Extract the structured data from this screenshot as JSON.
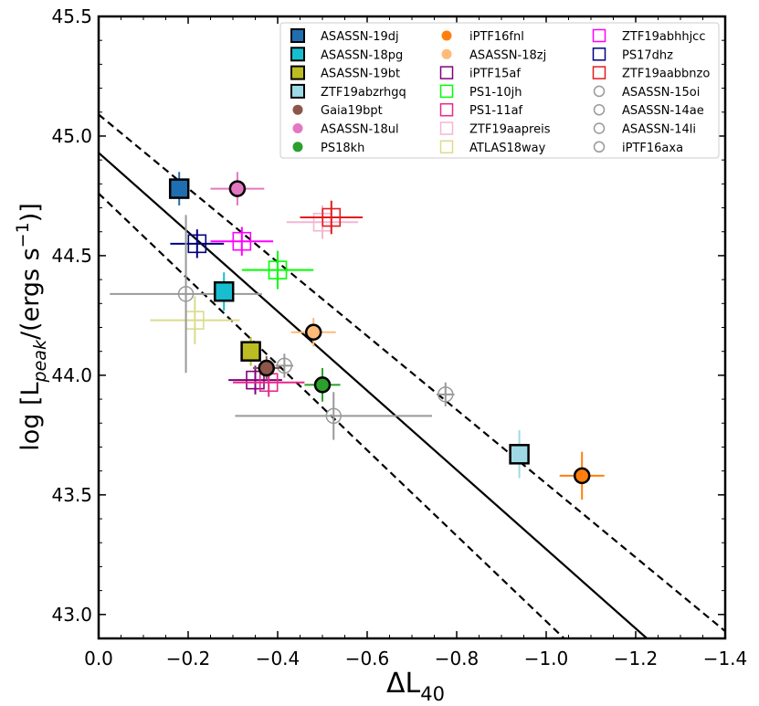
{
  "chart_data": {
    "type": "scatter",
    "xlabel_main": "ΔL",
    "xlabel_sub": "40",
    "ylabel_prefix": "log [L",
    "ylabel_sub": "peak",
    "ylabel_mid": "/(ergs s",
    "ylabel_sup": "−1",
    "ylabel_suffix": ")]",
    "xlim": [
      0.0,
      -1.4
    ],
    "ylim": [
      42.9,
      45.5
    ],
    "xticks": [
      0.0,
      -0.2,
      -0.4,
      -0.6,
      -0.8,
      -1.0,
      -1.2,
      -1.4
    ],
    "xtick_labels": [
      "0.0",
      "−0.2",
      "−0.4",
      "−0.6",
      "−0.8",
      "−1.0",
      "−1.2",
      "−1.4"
    ],
    "yticks": [
      43.0,
      43.5,
      44.0,
      44.5,
      45.0,
      45.5
    ],
    "ytick_labels": [
      "43.0",
      "43.5",
      "44.0",
      "44.5",
      "45.0",
      "45.5"
    ],
    "fit_lines": [
      {
        "name": "best-fit",
        "style": "solid",
        "points": [
          [
            0.0,
            44.93
          ],
          [
            -1.225,
            42.9
          ]
        ]
      },
      {
        "name": "upper-bound",
        "style": "dashed",
        "points": [
          [
            0.0,
            45.09
          ],
          [
            -1.4,
            42.93
          ]
        ]
      },
      {
        "name": "lower-bound",
        "style": "dashed",
        "points": [
          [
            0.0,
            44.76
          ],
          [
            -1.04,
            42.9
          ]
        ]
      }
    ],
    "series": [
      {
        "name": "ASASSN-19dj",
        "marker": "square-filled",
        "color": "#1f6fb0",
        "x": -0.18,
        "y": 44.78,
        "xerr": 0.02,
        "yerr": 0.07
      },
      {
        "name": "ASASSN-18pg",
        "marker": "square-filled",
        "color": "#17becf",
        "x": -0.28,
        "y": 44.35,
        "xerr": 0.02,
        "yerr": 0.08
      },
      {
        "name": "ASASSN-19bt",
        "marker": "square-filled",
        "color": "#bcbd22",
        "x": -0.34,
        "y": 44.1,
        "xerr": 0.02,
        "yerr": 0.06
      },
      {
        "name": "ZTF19abzrhgq",
        "marker": "square-filled",
        "color": "#9edae5",
        "x": -0.94,
        "y": 43.67,
        "xerr": 0.02,
        "yerr": 0.1
      },
      {
        "name": "Gaia19bpt",
        "marker": "circle-filled",
        "color": "#8c564b",
        "x": -0.375,
        "y": 44.03,
        "xerr": 0.03,
        "yerr": 0.05
      },
      {
        "name": "ASASSN-18ul",
        "marker": "circle-filled",
        "color": "#e377c2",
        "x": -0.31,
        "y": 44.78,
        "xerr": 0.06,
        "yerr": 0.07
      },
      {
        "name": "PS18kh",
        "marker": "circle-filled",
        "color": "#2ca02c",
        "x": -0.5,
        "y": 43.96,
        "xerr": 0.04,
        "yerr": 0.07
      },
      {
        "name": "iPTF16fnl",
        "marker": "circle-filled",
        "color": "#ff7f0e",
        "x": -1.08,
        "y": 43.58,
        "xerr": 0.05,
        "yerr": 0.1
      },
      {
        "name": "ASASSN-18zj",
        "marker": "circle-filled",
        "color": "#ffbb78",
        "x": -0.48,
        "y": 44.18,
        "xerr": 0.05,
        "yerr": 0.06
      },
      {
        "name": "iPTF15af",
        "marker": "square-open",
        "color": "#800080",
        "x": -0.35,
        "y": 43.98,
        "xerr": 0.06,
        "yerr": 0.06
      },
      {
        "name": "PS1-10jh",
        "marker": "square-open",
        "color": "#00ff00",
        "x": -0.4,
        "y": 44.44,
        "xerr": 0.08,
        "yerr": 0.08
      },
      {
        "name": "PS1-11af",
        "marker": "square-open",
        "color": "#e7298a",
        "x": -0.38,
        "y": 43.97,
        "xerr": 0.08,
        "yerr": 0.06
      },
      {
        "name": "ZTF19aapreis",
        "marker": "square-open",
        "color": "#f4b6d2",
        "x": -0.5,
        "y": 44.64,
        "xerr": 0.08,
        "yerr": 0.07
      },
      {
        "name": "ATLAS18way",
        "marker": "square-open",
        "color": "#dbdb8d",
        "x": -0.215,
        "y": 44.23,
        "xerr": 0.1,
        "yerr": 0.1
      },
      {
        "name": "ZTF19abhhjcc",
        "marker": "square-open",
        "color": "#ff00ff",
        "x": -0.32,
        "y": 44.56,
        "xerr": 0.07,
        "yerr": 0.06
      },
      {
        "name": "PS17dhz",
        "marker": "square-open",
        "color": "#000080",
        "x": -0.22,
        "y": 44.55,
        "xerr": 0.06,
        "yerr": 0.06
      },
      {
        "name": "ZTF19aabbnzo",
        "marker": "square-open",
        "color": "#e31a1c",
        "x": -0.52,
        "y": 44.66,
        "xerr": 0.07,
        "yerr": 0.07
      },
      {
        "name": "ASASSN-15oi",
        "marker": "circle-open",
        "color": "#999999",
        "x": -0.195,
        "y": 44.34,
        "xerr": 0.17,
        "yerr": 0.33
      },
      {
        "name": "ASASSN-14ae",
        "marker": "circle-open",
        "color": "#999999",
        "x": -0.415,
        "y": 44.04,
        "xerr": 0.02,
        "yerr": 0.05
      },
      {
        "name": "ASASSN-14li",
        "marker": "circle-open",
        "color": "#999999",
        "x": -0.775,
        "y": 43.92,
        "xerr": 0.02,
        "yerr": 0.05
      },
      {
        "name": "iPTF16axa",
        "marker": "circle-open",
        "color": "#999999",
        "x": -0.525,
        "y": 43.83,
        "xerr": 0.22,
        "yerr": 0.1
      }
    ],
    "legend_position": "top-right",
    "grid": false
  }
}
